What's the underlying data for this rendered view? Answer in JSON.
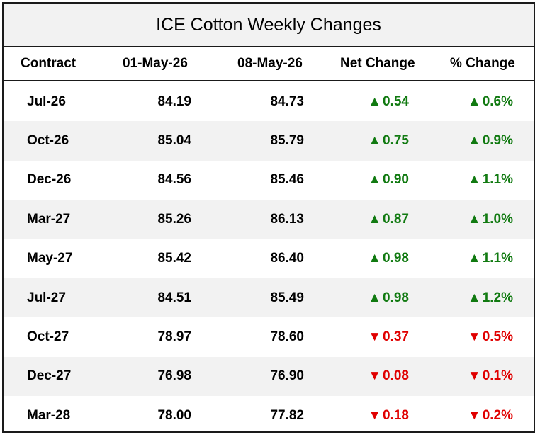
{
  "title": "ICE Cotton Weekly Changes",
  "headers": {
    "contract": "Contract",
    "prev": "01-May-26",
    "curr": "08-May-26",
    "net": "Net Change",
    "pct": "% Change"
  },
  "colors": {
    "up": "#117a11",
    "down": "#e00000",
    "header_bg": "#f2f2f2"
  },
  "icons": {
    "up": "▲",
    "down": "▼"
  },
  "rows": [
    {
      "contract": "Jul-26",
      "prev": "84.19",
      "curr": "84.73",
      "net": "0.54",
      "pct": "0.6%",
      "dir": "up"
    },
    {
      "contract": "Oct-26",
      "prev": "85.04",
      "curr": "85.79",
      "net": "0.75",
      "pct": "0.9%",
      "dir": "up"
    },
    {
      "contract": "Dec-26",
      "prev": "84.56",
      "curr": "85.46",
      "net": "0.90",
      "pct": "1.1%",
      "dir": "up"
    },
    {
      "contract": "Mar-27",
      "prev": "85.26",
      "curr": "86.13",
      "net": "0.87",
      "pct": "1.0%",
      "dir": "up"
    },
    {
      "contract": "May-27",
      "prev": "85.42",
      "curr": "86.40",
      "net": "0.98",
      "pct": "1.1%",
      "dir": "up"
    },
    {
      "contract": "Jul-27",
      "prev": "84.51",
      "curr": "85.49",
      "net": "0.98",
      "pct": "1.2%",
      "dir": "up"
    },
    {
      "contract": "Oct-27",
      "prev": "78.97",
      "curr": "78.60",
      "net": "0.37",
      "pct": "0.5%",
      "dir": "down"
    },
    {
      "contract": "Dec-27",
      "prev": "76.98",
      "curr": "76.90",
      "net": "0.08",
      "pct": "0.1%",
      "dir": "down"
    },
    {
      "contract": "Mar-28",
      "prev": "78.00",
      "curr": "77.82",
      "net": "0.18",
      "pct": "0.2%",
      "dir": "down"
    }
  ]
}
